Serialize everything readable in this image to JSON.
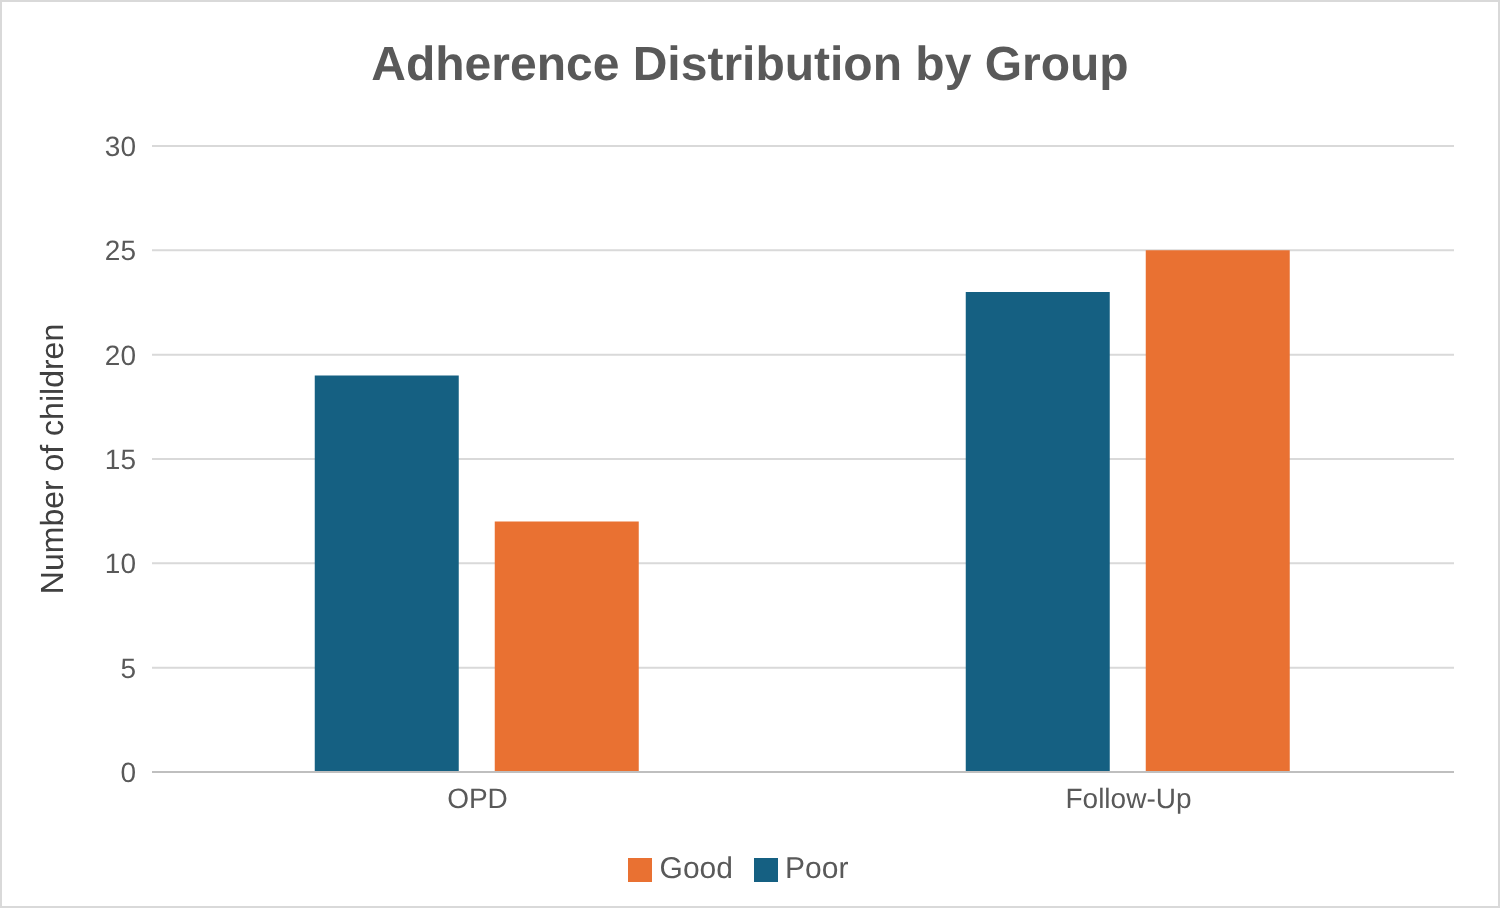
{
  "chart_data": {
    "type": "bar",
    "title": "Adherence Distribution by Group",
    "ylabel": "Number of children",
    "categories": [
      "OPD",
      "Follow-Up"
    ],
    "series": [
      {
        "name": "Poor",
        "color": "#156082",
        "values": [
          19,
          23
        ]
      },
      {
        "name": "Good",
        "color": "#e97132",
        "values": [
          12,
          25
        ]
      }
    ],
    "ylim": [
      0,
      30
    ],
    "yticks": [
      0,
      5,
      10,
      15,
      20,
      25,
      30
    ],
    "grid": "y",
    "legend": "bottom"
  }
}
